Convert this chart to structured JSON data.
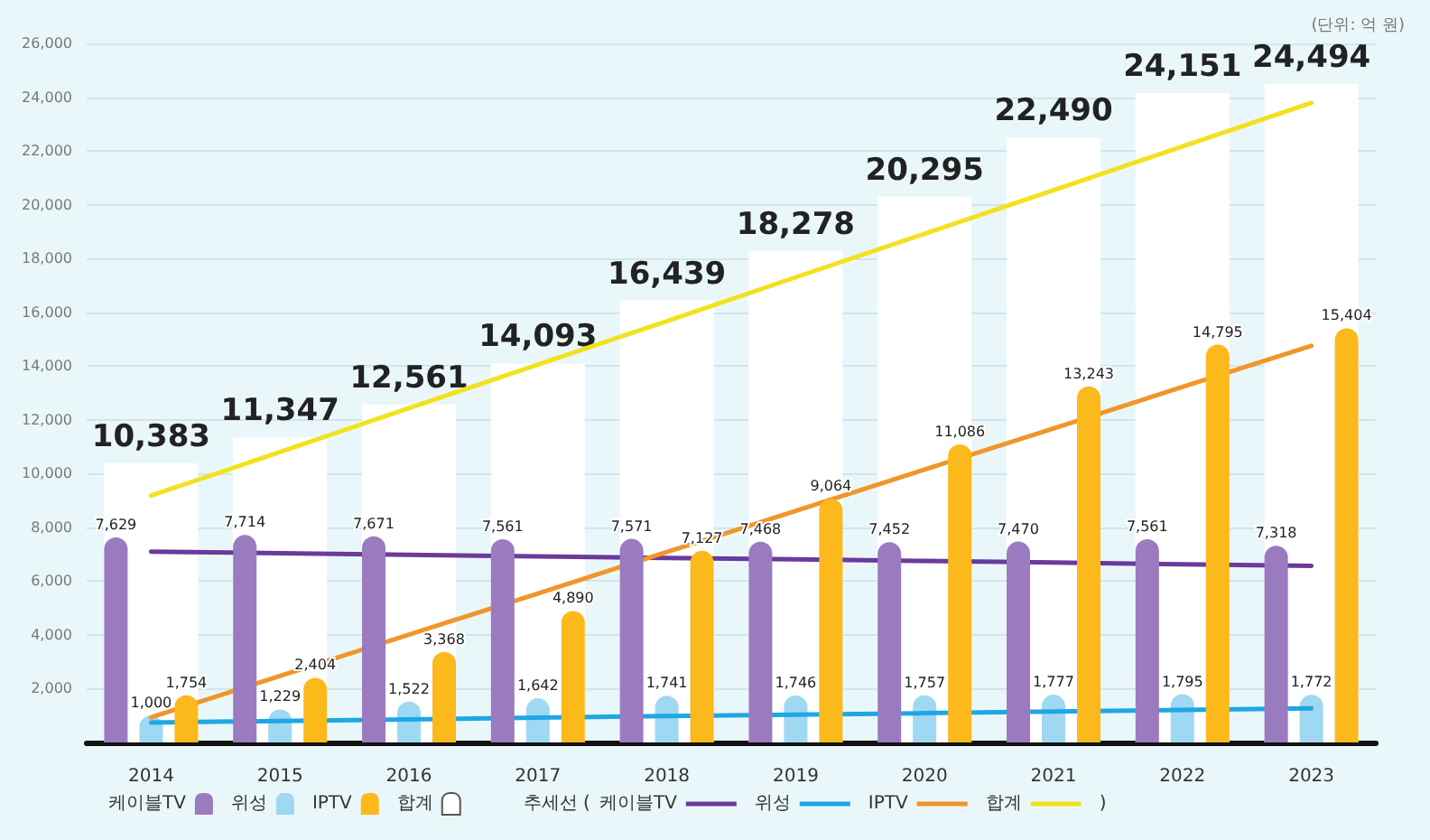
{
  "chart_data": {
    "type": "bar",
    "categories": [
      "2014",
      "2015",
      "2016",
      "2017",
      "2018",
      "2019",
      "2020",
      "2021",
      "2022",
      "2023"
    ],
    "series": [
      {
        "name": "케이블TV",
        "color": "#9b7bbf",
        "values": [
          7629,
          7714,
          7671,
          7561,
          7571,
          7468,
          7452,
          7470,
          7561,
          7318
        ],
        "value_labels": [
          "7,629",
          "7,714",
          "7,671",
          "7,561",
          "7,571",
          "7,468",
          "7,452",
          "7,470",
          "7,561",
          "7,318"
        ]
      },
      {
        "name": "위성",
        "color": "#9fd8f2",
        "values": [
          1000,
          1229,
          1522,
          1642,
          1741,
          1746,
          1757,
          1777,
          1795,
          1772
        ],
        "value_labels": [
          "1,000",
          "1,229",
          "1,522",
          "1,642",
          "1,741",
          "1,746",
          "1,757",
          "1,777",
          "1,795",
          "1,772"
        ]
      },
      {
        "name": "IPTV",
        "color": "#fbb91c",
        "values": [
          1754,
          2404,
          3368,
          4890,
          7127,
          9064,
          11086,
          13243,
          14795,
          15404
        ],
        "value_labels": [
          "1,754",
          "2,404",
          "3,368",
          "4,890",
          "7,127",
          "9,064",
          "11,086",
          "13,243",
          "14,795",
          "15,404"
        ]
      },
      {
        "name": "합계",
        "color": "#ffffff",
        "values": [
          10383,
          11347,
          12561,
          14093,
          16439,
          18278,
          20295,
          22490,
          24151,
          24494
        ],
        "value_labels": [
          "10,383",
          "11,347",
          "12,561",
          "14,093",
          "16,439",
          "18,278",
          "20,295",
          "22,490",
          "24,151",
          "24,494"
        ]
      },
      {
        "name": "케이블TV",
        "type": "line",
        "color": "#6a3a9c",
        "values": [
          7100,
          7040,
          6980,
          6920,
          6860,
          6810,
          6750,
          6690,
          6630,
          6570
        ]
      },
      {
        "name": "위성",
        "type": "line",
        "color": "#1ea7e4",
        "values": [
          740,
          800,
          860,
          920,
          980,
          1030,
          1090,
          1150,
          1210,
          1270
        ]
      },
      {
        "name": "IPTV",
        "type": "line",
        "color": "#f0962a",
        "values": [
          940,
          2470,
          4010,
          5540,
          7080,
          8610,
          10150,
          11680,
          13220,
          14750
        ]
      },
      {
        "name": "합계",
        "type": "line",
        "color": "#f2e21e",
        "values": [
          9180,
          10800,
          12430,
          14050,
          15670,
          17300,
          18920,
          20540,
          22170,
          23790
        ]
      }
    ],
    "ylim": [
      0,
      26000
    ],
    "yticks": [
      {
        "value": 2000,
        "label": "2,000"
      },
      {
        "value": 4000,
        "label": "4,000"
      },
      {
        "value": 6000,
        "label": "6,000"
      },
      {
        "value": 8000,
        "label": "8,000"
      },
      {
        "value": 10000,
        "label": "10,000"
      },
      {
        "value": 12000,
        "label": "12,000"
      },
      {
        "value": 14000,
        "label": "14,000"
      },
      {
        "value": 16000,
        "label": "16,000"
      },
      {
        "value": 18000,
        "label": "18,000"
      },
      {
        "value": 20000,
        "label": "20,000"
      },
      {
        "value": 22000,
        "label": "22,000"
      },
      {
        "value": 24000,
        "label": "24,000"
      },
      {
        "value": 26000,
        "label": "26,000"
      }
    ],
    "annotations": [
      "(단위: 억 원)",
      "추세선 (",
      ")"
    ],
    "grid": "y",
    "legend": "bottom",
    "marker": "none",
    "line_style": "solid"
  }
}
